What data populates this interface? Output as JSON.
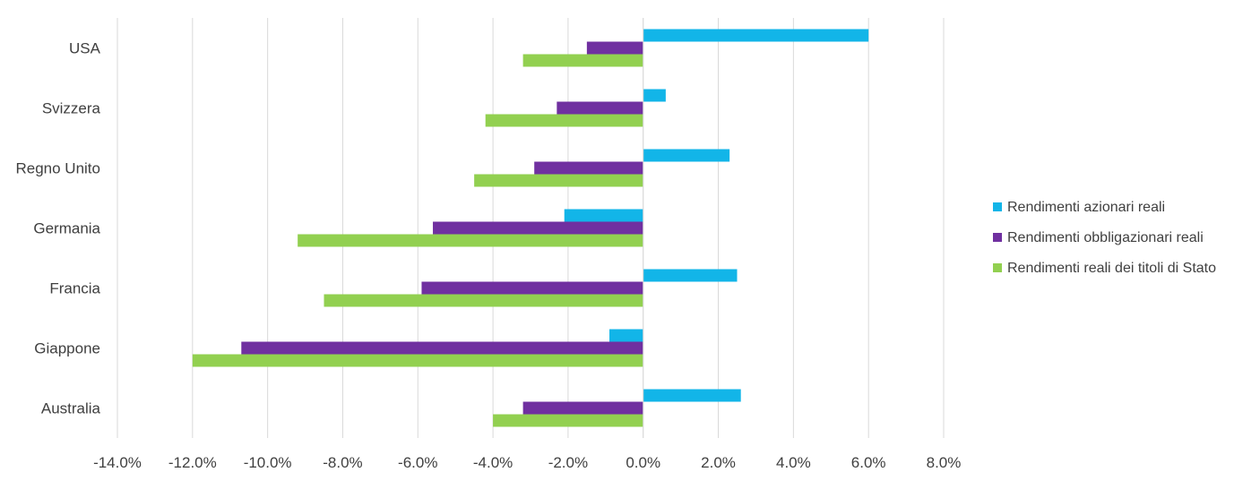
{
  "chart_data": {
    "type": "bar",
    "orientation": "horizontal",
    "categories": [
      "USA",
      "Svizzera",
      "Regno Unito",
      "Germania",
      "Francia",
      "Giappone",
      "Australia"
    ],
    "series": [
      {
        "name": "Rendimenti azionari reali",
        "color": "#12B5E8",
        "values": [
          6.0,
          0.6,
          2.3,
          -2.1,
          2.5,
          -0.9,
          2.6
        ]
      },
      {
        "name": "Rendimenti obbligazionari reali",
        "color": "#7030A0",
        "values": [
          -1.5,
          -2.3,
          -2.9,
          -5.6,
          -5.9,
          -10.7,
          -3.2
        ]
      },
      {
        "name": "Rendimenti reali dei titoli di Stato",
        "color": "#92D050",
        "values": [
          -3.2,
          -4.2,
          -4.5,
          -9.2,
          -8.5,
          -12.0,
          -4.0
        ]
      }
    ],
    "xlim": [
      -14,
      8
    ],
    "xticks": [
      "-14.0%",
      "-12.0%",
      "-10.0%",
      "-8.0%",
      "-6.0%",
      "-4.0%",
      "-2.0%",
      "0.0%",
      "2.0%",
      "4.0%",
      "6.0%",
      "8.0%"
    ],
    "grid": true,
    "legend_position": "right",
    "title": "",
    "xlabel": "",
    "ylabel": ""
  }
}
